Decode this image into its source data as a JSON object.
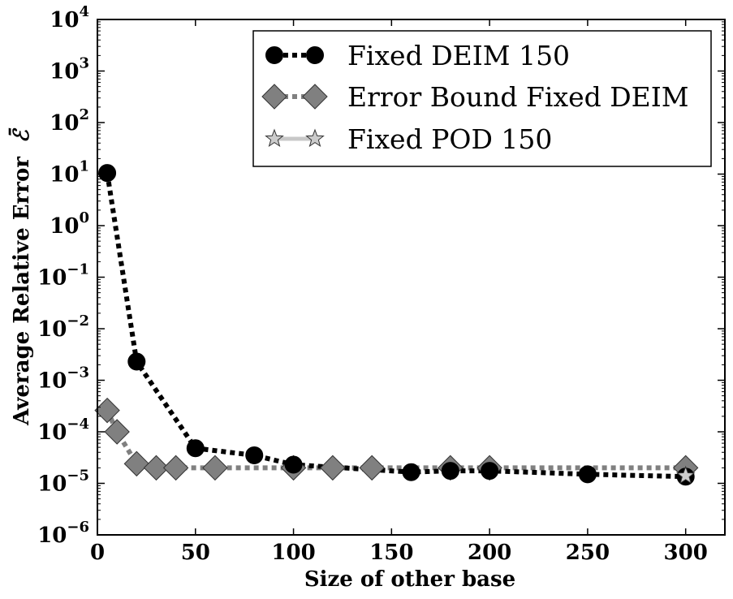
{
  "chart_data": {
    "type": "line",
    "title": "",
    "xlabel": "Size of other base",
    "ylabel": "Average Relative Error Ɛ̄",
    "ylabel_text": "Average Relative Error",
    "ylabel_symbol": "ℰ̄",
    "xscale": "linear",
    "yscale": "log",
    "xlim": [
      0,
      320
    ],
    "ylim": [
      1e-06,
      10000.0
    ],
    "xticks": [
      0,
      50,
      100,
      150,
      200,
      250,
      300
    ],
    "xtick_labels": [
      "0",
      "50",
      "100",
      "150",
      "200",
      "250",
      "300"
    ],
    "ytick_exponents": [
      -6,
      -5,
      -4,
      -3,
      -2,
      -1,
      0,
      1,
      2,
      3,
      4
    ],
    "ytick_base": "10",
    "grid": false,
    "legend_position": "top-right",
    "series": [
      {
        "name": "Fixed DEIM 150",
        "color": "#000000",
        "marker": "circle",
        "line": "dotted",
        "x": [
          5,
          20,
          50,
          80,
          100,
          160,
          180,
          200,
          250,
          300
        ],
        "y": [
          10.5,
          0.0023,
          4.8e-05,
          3.5e-05,
          2.3e-05,
          1.65e-05,
          1.75e-05,
          1.75e-05,
          1.5e-05,
          1.35e-05
        ]
      },
      {
        "name": "Error Bound Fixed DEIM",
        "color": "#808080",
        "marker": "diamond",
        "line": "dotted",
        "x": [
          5,
          10,
          20,
          30,
          40,
          60,
          100,
          120,
          140,
          180,
          200,
          300
        ],
        "y": [
          0.00026,
          0.0001,
          2.4e-05,
          2e-05,
          2e-05,
          2e-05,
          2e-05,
          2e-05,
          2e-05,
          2e-05,
          2e-05,
          2e-05
        ]
      },
      {
        "name": "Fixed POD 150",
        "color": "#c8c8c8",
        "marker": "star",
        "line": "solid",
        "x": [
          300
        ],
        "y": [
          1.4e-05
        ]
      }
    ]
  }
}
